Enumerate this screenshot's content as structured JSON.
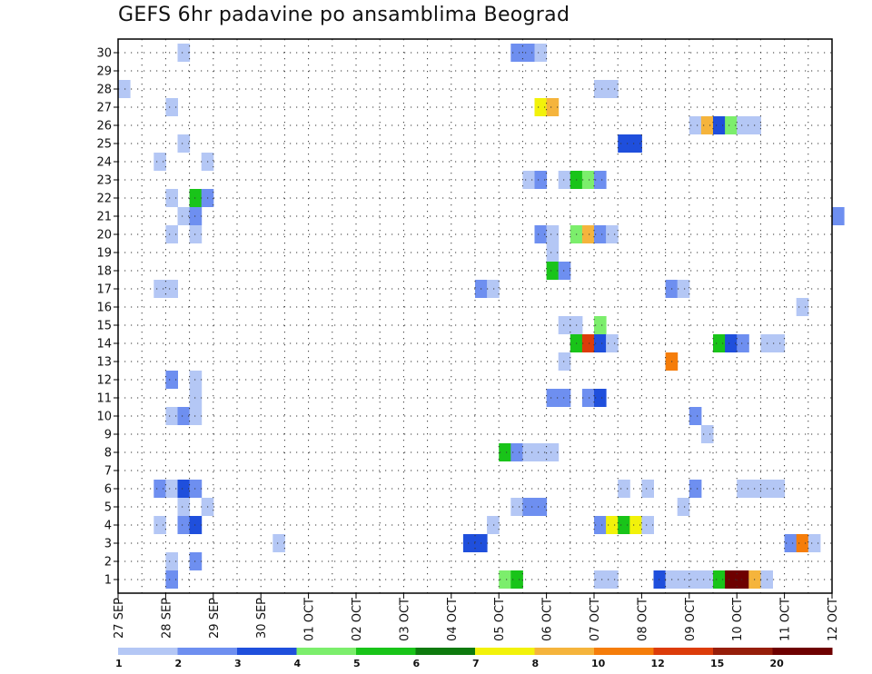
{
  "chart_data": {
    "type": "heatmap",
    "title": "GEFS 6hr padavine po ansamblima Beograd",
    "xlabel": "",
    "ylabel": "",
    "x_unit": "6-hour steps since 27 SEP 00Z",
    "x_range": [
      0,
      60
    ],
    "x_ticks": [
      {
        "step": 0,
        "label": "27 SEP"
      },
      {
        "step": 4,
        "label": "28 SEP"
      },
      {
        "step": 8,
        "label": "29 SEP"
      },
      {
        "step": 12,
        "label": "30 SEP"
      },
      {
        "step": 16,
        "label": "01 OCT"
      },
      {
        "step": 20,
        "label": "02 OCT"
      },
      {
        "step": 24,
        "label": "03 OCT"
      },
      {
        "step": 28,
        "label": "04 OCT"
      },
      {
        "step": 32,
        "label": "05 OCT"
      },
      {
        "step": 36,
        "label": "06 OCT"
      },
      {
        "step": 40,
        "label": "07 OCT"
      },
      {
        "step": 44,
        "label": "08 OCT"
      },
      {
        "step": 48,
        "label": "09 OCT"
      },
      {
        "step": 52,
        "label": "10 OCT"
      },
      {
        "step": 56,
        "label": "11 OCT"
      },
      {
        "step": 60,
        "label": "12 OCT"
      }
    ],
    "y_ticks": [
      1,
      2,
      3,
      4,
      5,
      6,
      7,
      8,
      9,
      10,
      11,
      12,
      13,
      14,
      15,
      16,
      17,
      18,
      19,
      20,
      21,
      22,
      23,
      24,
      25,
      26,
      27,
      28,
      29,
      30
    ],
    "y_range": [
      0,
      30
    ],
    "grid": "dotted",
    "legend_placement": "bottom",
    "colorbar": {
      "labels": [
        "1",
        "2",
        "3",
        "4",
        "5",
        "6",
        "7",
        "8",
        "10",
        "12",
        "15",
        "20"
      ],
      "colors": [
        "#b4c7f5",
        "#6e8ff0",
        "#1f4fdc",
        "#7cee6c",
        "#19c419",
        "#0e7a0e",
        "#f2f20a",
        "#f5b43c",
        "#f57d0a",
        "#dc3c0a",
        "#961e0a",
        "#6e0000"
      ]
    },
    "cells": [
      {
        "member": 30,
        "step": 5,
        "class": 1
      },
      {
        "member": 30,
        "step": 33,
        "class": 2
      },
      {
        "member": 30,
        "step": 34,
        "class": 2
      },
      {
        "member": 30,
        "step": 35,
        "class": 1
      },
      {
        "member": 28,
        "step": 0,
        "class": 1
      },
      {
        "member": 28,
        "step": 40,
        "class": 1
      },
      {
        "member": 28,
        "step": 41,
        "class": 1
      },
      {
        "member": 27,
        "step": 4,
        "class": 1
      },
      {
        "member": 27,
        "step": 35,
        "class": 7
      },
      {
        "member": 27,
        "step": 36,
        "class": 8
      },
      {
        "member": 26,
        "step": 48,
        "class": 1
      },
      {
        "member": 26,
        "step": 49,
        "class": 8
      },
      {
        "member": 26,
        "step": 50,
        "class": 3
      },
      {
        "member": 26,
        "step": 51,
        "class": 4
      },
      {
        "member": 26,
        "step": 52,
        "class": 1
      },
      {
        "member": 26,
        "step": 53,
        "class": 1
      },
      {
        "member": 25,
        "step": 5,
        "class": 1
      },
      {
        "member": 25,
        "step": 42,
        "class": 3
      },
      {
        "member": 25,
        "step": 43,
        "class": 3
      },
      {
        "member": 24,
        "step": 3,
        "class": 1
      },
      {
        "member": 24,
        "step": 7,
        "class": 1
      },
      {
        "member": 23,
        "step": 34,
        "class": 1
      },
      {
        "member": 23,
        "step": 35,
        "class": 2
      },
      {
        "member": 23,
        "step": 37,
        "class": 1
      },
      {
        "member": 23,
        "step": 38,
        "class": 5
      },
      {
        "member": 23,
        "step": 39,
        "class": 4
      },
      {
        "member": 23,
        "step": 40,
        "class": 2
      },
      {
        "member": 22,
        "step": 4,
        "class": 1
      },
      {
        "member": 22,
        "step": 6,
        "class": 5
      },
      {
        "member": 22,
        "step": 7,
        "class": 2
      },
      {
        "member": 21,
        "step": 5,
        "class": 1
      },
      {
        "member": 21,
        "step": 6,
        "class": 2
      },
      {
        "member": 21,
        "step": 60,
        "class": 2
      },
      {
        "member": 20,
        "step": 4,
        "class": 1
      },
      {
        "member": 20,
        "step": 6,
        "class": 1
      },
      {
        "member": 20,
        "step": 35,
        "class": 2
      },
      {
        "member": 20,
        "step": 36,
        "class": 1
      },
      {
        "member": 20,
        "step": 38,
        "class": 4
      },
      {
        "member": 20,
        "step": 39,
        "class": 8
      },
      {
        "member": 20,
        "step": 40,
        "class": 2
      },
      {
        "member": 20,
        "step": 41,
        "class": 1
      },
      {
        "member": 19,
        "step": 36,
        "class": 1
      },
      {
        "member": 18,
        "step": 36,
        "class": 5
      },
      {
        "member": 18,
        "step": 37,
        "class": 2
      },
      {
        "member": 17,
        "step": 3,
        "class": 1
      },
      {
        "member": 17,
        "step": 4,
        "class": 1
      },
      {
        "member": 17,
        "step": 30,
        "class": 2
      },
      {
        "member": 17,
        "step": 31,
        "class": 1
      },
      {
        "member": 17,
        "step": 46,
        "class": 2
      },
      {
        "member": 17,
        "step": 47,
        "class": 1
      },
      {
        "member": 16,
        "step": 57,
        "class": 1
      },
      {
        "member": 15,
        "step": 37,
        "class": 1
      },
      {
        "member": 15,
        "step": 38,
        "class": 1
      },
      {
        "member": 15,
        "step": 40,
        "class": 4
      },
      {
        "member": 14,
        "step": 38,
        "class": 5
      },
      {
        "member": 14,
        "step": 39,
        "class": 10
      },
      {
        "member": 14,
        "step": 40,
        "class": 3
      },
      {
        "member": 14,
        "step": 41,
        "class": 1
      },
      {
        "member": 14,
        "step": 50,
        "class": 5
      },
      {
        "member": 14,
        "step": 51,
        "class": 3
      },
      {
        "member": 14,
        "step": 52,
        "class": 2
      },
      {
        "member": 14,
        "step": 54,
        "class": 1
      },
      {
        "member": 14,
        "step": 55,
        "class": 1
      },
      {
        "member": 13,
        "step": 37,
        "class": 1
      },
      {
        "member": 13,
        "step": 46,
        "class": 9
      },
      {
        "member": 12,
        "step": 4,
        "class": 2
      },
      {
        "member": 12,
        "step": 6,
        "class": 1
      },
      {
        "member": 11,
        "step": 6,
        "class": 1
      },
      {
        "member": 11,
        "step": 36,
        "class": 2
      },
      {
        "member": 11,
        "step": 37,
        "class": 2
      },
      {
        "member": 11,
        "step": 39,
        "class": 2
      },
      {
        "member": 11,
        "step": 40,
        "class": 3
      },
      {
        "member": 10,
        "step": 4,
        "class": 1
      },
      {
        "member": 10,
        "step": 5,
        "class": 2
      },
      {
        "member": 10,
        "step": 6,
        "class": 1
      },
      {
        "member": 10,
        "step": 48,
        "class": 2
      },
      {
        "member": 9,
        "step": 49,
        "class": 1
      },
      {
        "member": 8,
        "step": 32,
        "class": 5
      },
      {
        "member": 8,
        "step": 33,
        "class": 2
      },
      {
        "member": 8,
        "step": 34,
        "class": 1
      },
      {
        "member": 8,
        "step": 35,
        "class": 1
      },
      {
        "member": 8,
        "step": 36,
        "class": 1
      },
      {
        "member": 6,
        "step": 3,
        "class": 2
      },
      {
        "member": 6,
        "step": 4,
        "class": 1
      },
      {
        "member": 6,
        "step": 5,
        "class": 3
      },
      {
        "member": 6,
        "step": 6,
        "class": 2
      },
      {
        "member": 6,
        "step": 42,
        "class": 1
      },
      {
        "member": 6,
        "step": 44,
        "class": 1
      },
      {
        "member": 6,
        "step": 48,
        "class": 2
      },
      {
        "member": 6,
        "step": 52,
        "class": 1
      },
      {
        "member": 6,
        "step": 53,
        "class": 1
      },
      {
        "member": 6,
        "step": 54,
        "class": 1
      },
      {
        "member": 6,
        "step": 55,
        "class": 1
      },
      {
        "member": 5,
        "step": 5,
        "class": 1
      },
      {
        "member": 5,
        "step": 7,
        "class": 1
      },
      {
        "member": 5,
        "step": 33,
        "class": 1
      },
      {
        "member": 5,
        "step": 34,
        "class": 2
      },
      {
        "member": 5,
        "step": 35,
        "class": 2
      },
      {
        "member": 5,
        "step": 47,
        "class": 1
      },
      {
        "member": 4,
        "step": 3,
        "class": 1
      },
      {
        "member": 4,
        "step": 5,
        "class": 2
      },
      {
        "member": 4,
        "step": 6,
        "class": 3
      },
      {
        "member": 4,
        "step": 31,
        "class": 1
      },
      {
        "member": 4,
        "step": 40,
        "class": 2
      },
      {
        "member": 4,
        "step": 41,
        "class": 7
      },
      {
        "member": 4,
        "step": 42,
        "class": 5
      },
      {
        "member": 4,
        "step": 43,
        "class": 7
      },
      {
        "member": 4,
        "step": 44,
        "class": 1
      },
      {
        "member": 3,
        "step": 13,
        "class": 1
      },
      {
        "member": 3,
        "step": 29,
        "class": 3
      },
      {
        "member": 3,
        "step": 30,
        "class": 3
      },
      {
        "member": 3,
        "step": 56,
        "class": 2
      },
      {
        "member": 3,
        "step": 57,
        "class": 9
      },
      {
        "member": 3,
        "step": 58,
        "class": 1
      },
      {
        "member": 2,
        "step": 4,
        "class": 1
      },
      {
        "member": 2,
        "step": 6,
        "class": 2
      },
      {
        "member": 1,
        "step": 4,
        "class": 2
      },
      {
        "member": 1,
        "step": 32,
        "class": 4
      },
      {
        "member": 1,
        "step": 33,
        "class": 5
      },
      {
        "member": 1,
        "step": 40,
        "class": 1
      },
      {
        "member": 1,
        "step": 41,
        "class": 1
      },
      {
        "member": 1,
        "step": 45,
        "class": 3
      },
      {
        "member": 1,
        "step": 46,
        "class": 1
      },
      {
        "member": 1,
        "step": 47,
        "class": 1
      },
      {
        "member": 1,
        "step": 48,
        "class": 1
      },
      {
        "member": 1,
        "step": 49,
        "class": 1
      },
      {
        "member": 1,
        "step": 50,
        "class": 5
      },
      {
        "member": 1,
        "step": 51,
        "class": 12
      },
      {
        "member": 1,
        "step": 52,
        "class": 12
      },
      {
        "member": 1,
        "step": 53,
        "class": 8
      },
      {
        "member": 1,
        "step": 54,
        "class": 1
      }
    ]
  }
}
